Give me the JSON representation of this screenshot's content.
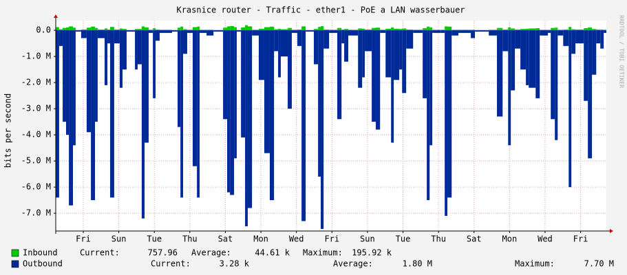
{
  "chart_data": {
    "type": "bar",
    "title": "Krasnice router - Traffic - ether1 - PoE a LAN wasserbauer",
    "ylabel": "bits per second",
    "watermark": "RRDTOOL / TOBI OETIKER",
    "stat_labels": [
      "Current:",
      "Average:",
      "Maximum:"
    ],
    "xlim": [
      0,
      31
    ],
    "xticks": [
      {
        "value": 1.55,
        "label": "Fri"
      },
      {
        "value": 3.55,
        "label": "Sun"
      },
      {
        "value": 5.55,
        "label": "Tue"
      },
      {
        "value": 7.55,
        "label": "Thu"
      },
      {
        "value": 9.55,
        "label": "Sat"
      },
      {
        "value": 11.55,
        "label": "Mon"
      },
      {
        "value": 13.55,
        "label": "Wed"
      },
      {
        "value": 15.55,
        "label": "Fri"
      },
      {
        "value": 17.55,
        "label": "Sun"
      },
      {
        "value": 19.55,
        "label": "Tue"
      },
      {
        "value": 21.55,
        "label": "Thu"
      },
      {
        "value": 23.55,
        "label": "Sat"
      },
      {
        "value": 25.55,
        "label": "Mon"
      },
      {
        "value": 27.55,
        "label": "Wed"
      },
      {
        "value": 29.55,
        "label": "Fri"
      }
    ],
    "ylim": [
      -7680000,
      370000
    ],
    "yticks": [
      {
        "value": 0,
        "label": "0.0"
      },
      {
        "value": -1000000,
        "label": "-1.0 M"
      },
      {
        "value": -2000000,
        "label": "-2.0 M"
      },
      {
        "value": -3000000,
        "label": "-3.0 M"
      },
      {
        "value": -4000000,
        "label": "-4.0 M"
      },
      {
        "value": -5000000,
        "label": "-5.0 M"
      },
      {
        "value": -6000000,
        "label": "-6.0 M"
      },
      {
        "value": -7000000,
        "label": "-7.0 M"
      }
    ],
    "grid": true,
    "x": [
      0.0,
      0.19,
      0.39,
      0.58,
      0.74,
      0.97,
      1.12,
      1.43,
      1.74,
      1.98,
      2.21,
      2.36,
      2.75,
      2.91,
      3.06,
      3.29,
      3.6,
      3.76,
      3.99,
      4.46,
      4.61,
      4.84,
      5.0,
      5.23,
      5.47,
      5.62,
      5.85,
      6.55,
      6.86,
      7.02,
      7.17,
      7.4,
      7.71,
      7.95,
      8.1,
      8.49,
      8.88,
      9.42,
      9.65,
      9.81,
      10.04,
      10.19,
      10.43,
      10.66,
      10.81,
      11.05,
      11.43,
      11.74,
      12.05,
      12.29,
      12.52,
      12.67,
      13.06,
      13.29,
      13.6,
      13.84,
      14.07,
      14.53,
      14.77,
      14.92,
      15.08,
      15.39,
      15.85,
      16.09,
      16.24,
      16.47,
      17.02,
      17.25,
      17.4,
      17.79,
      18.02,
      18.26,
      18.57,
      18.88,
      19.03,
      19.34,
      19.5,
      19.73,
      20.12,
      20.66,
      20.89,
      21.05,
      21.2,
      21.67,
      21.9,
      22.05,
      22.29,
      22.67,
      23.37,
      23.6,
      24.38,
      24.84,
      25.16,
      25.47,
      25.62,
      25.85,
      26.16,
      26.47,
      26.63,
      27.02,
      27.25,
      27.71,
      27.87,
      28.1,
      28.26,
      28.57,
      28.88,
      29.03,
      29.26,
      29.73,
      29.96,
      30.19,
      30.43,
      30.66,
      30.85
    ],
    "series": [
      {
        "name": "Inbound",
        "color": "#00cc00",
        "current": "757.96",
        "average": "44.61 k",
        "maximum": "195.92 k",
        "values": [
          120000,
          40000,
          90000,
          110000,
          150000,
          100000,
          10000,
          30000,
          100000,
          140000,
          90000,
          30000,
          70000,
          30000,
          130000,
          30000,
          70000,
          50000,
          10000,
          50000,
          50000,
          150000,
          110000,
          20000,
          80000,
          30000,
          20000,
          10000,
          100000,
          140000,
          40000,
          20000,
          120000,
          140000,
          20000,
          20000,
          10000,
          100000,
          150000,
          160000,
          120000,
          10000,
          110000,
          195920,
          150000,
          20000,
          60000,
          120000,
          140000,
          40000,
          60000,
          40000,
          90000,
          20000,
          30000,
          150000,
          10000,
          50000,
          130000,
          160000,
          30000,
          20000,
          90000,
          30000,
          50000,
          20000,
          70000,
          60000,
          30000,
          90000,
          100000,
          20000,
          60000,
          110000,
          60000,
          50000,
          70000,
          30000,
          20000,
          80000,
          140000,
          110000,
          20000,
          20000,
          150000,
          140000,
          20000,
          20000,
          20000,
          10000,
          20000,
          90000,
          30000,
          110000,
          70000,
          30000,
          50000,
          60000,
          70000,
          80000,
          20000,
          20000,
          90000,
          100000,
          20000,
          30000,
          130000,
          40000,
          30000,
          80000,
          110000,
          50000,
          30000,
          30000,
          20000
        ]
      },
      {
        "name": "Outbound",
        "color": "#002a97",
        "current": "3.28 k",
        "average": "1.80 M",
        "maximum": "7.70 M",
        "values": [
          -6400000,
          -600000,
          -3500000,
          -4000000,
          -6700000,
          -4400000,
          -50000,
          -300000,
          -3900000,
          -6500000,
          -3500000,
          -300000,
          -2100000,
          -500000,
          -6400000,
          -500000,
          -2200000,
          -1500000,
          -50000,
          -1500000,
          -1300000,
          -7200000,
          -4300000,
          -100000,
          -2600000,
          -400000,
          -100000,
          -50000,
          -3700000,
          -6400000,
          -900000,
          -100000,
          -5200000,
          -6400000,
          -100000,
          -200000,
          -50000,
          -3400000,
          -6200000,
          -6300000,
          -4900000,
          -50000,
          -4100000,
          -7500000,
          -6800000,
          -200000,
          -1900000,
          -4700000,
          -6500000,
          -800000,
          -1800000,
          -1000000,
          -3000000,
          -100000,
          -600000,
          -7300000,
          -50000,
          -1300000,
          -5600000,
          -7600000,
          -700000,
          -100000,
          -3400000,
          -500000,
          -1200000,
          -200000,
          -2200000,
          -1800000,
          -800000,
          -3500000,
          -3800000,
          -100000,
          -1800000,
          -4300000,
          -1900000,
          -1500000,
          -2400000,
          -700000,
          -100000,
          -2600000,
          -6500000,
          -4400000,
          -100000,
          -100000,
          -7100000,
          -6400000,
          -200000,
          -100000,
          -300000,
          -50000,
          -200000,
          -3300000,
          -800000,
          -4400000,
          -2300000,
          -700000,
          -1500000,
          -2100000,
          -2200000,
          -2600000,
          -200000,
          -100000,
          -3400000,
          -4200000,
          -200000,
          -600000,
          -6000000,
          -900000,
          -500000,
          -2700000,
          -4900000,
          -1700000,
          -500000,
          -700000,
          -100000
        ]
      }
    ]
  }
}
